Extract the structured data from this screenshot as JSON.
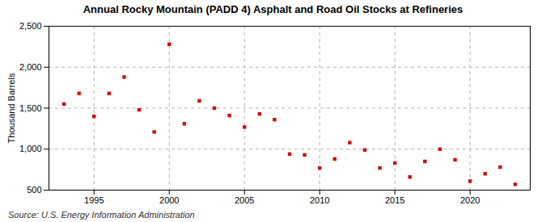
{
  "chart_data": {
    "type": "scatter",
    "title": "Annual Rocky Mountain (PADD 4) Asphalt and Road Oil Stocks at Refineries",
    "ylabel": "Thousand Barrels",
    "source": "Source: U.S. Energy Information Administration",
    "x": [
      1993,
      1994,
      1995,
      1996,
      1997,
      1998,
      1999,
      2000,
      2001,
      2002,
      2003,
      2004,
      2005,
      2006,
      2007,
      2008,
      2009,
      2010,
      2011,
      2012,
      2013,
      2014,
      2015,
      2016,
      2017,
      2018,
      2019,
      2020,
      2021,
      2022,
      2023
    ],
    "values": [
      1550,
      1680,
      1400,
      1680,
      1880,
      1480,
      1210,
      2280,
      1310,
      1590,
      1500,
      1410,
      1270,
      1430,
      1360,
      940,
      930,
      770,
      880,
      1080,
      990,
      770,
      830,
      660,
      850,
      1000,
      870,
      610,
      700,
      780,
      570
    ],
    "color": "#cc1111",
    "marker": "square",
    "xlim": [
      1992.0,
      2024.0
    ],
    "xticks": [
      1995,
      2000,
      2005,
      2010,
      2015,
      2020
    ],
    "ylim": [
      500,
      2500
    ],
    "yticks": [
      500,
      {
        "value": 1000,
        "label": "1,000"
      },
      {
        "value": 1500,
        "label": "1,500"
      },
      {
        "value": 2000,
        "label": "2,000"
      },
      {
        "value": 2500,
        "label": "2,500"
      }
    ],
    "grid": true
  }
}
